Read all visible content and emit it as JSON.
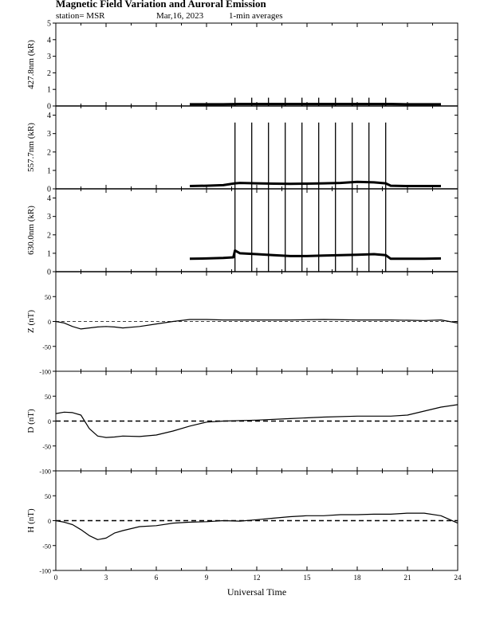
{
  "header": {
    "title": "Magnetic Field Variation and Auroral Emission",
    "station": "station= MSR",
    "date": "Mar,16, 2023",
    "averaging": "1-min averages"
  },
  "colors": {
    "line": "#000000",
    "background": "#ffffff"
  },
  "chart_data": [
    {
      "type": "line",
      "id": "em4278",
      "ylabel": "427.8nm (kR)",
      "ylim": [
        0,
        5
      ],
      "yticks": [
        0,
        1,
        2,
        3,
        4,
        5
      ],
      "xlim": [
        0,
        24
      ],
      "series": [
        {
          "x": [
            8.0,
            9,
            10,
            11,
            12,
            13,
            14,
            15,
            16,
            17,
            18,
            19,
            20,
            21,
            22,
            23.0
          ],
          "y": [
            0.1,
            0.1,
            0.1,
            0.12,
            0.12,
            0.12,
            0.12,
            0.12,
            0.12,
            0.12,
            0.12,
            0.12,
            0.12,
            0.1,
            0.1,
            0.1
          ]
        }
      ],
      "spikes": {
        "x": [
          10.7,
          11.7,
          12.7,
          13.7,
          14.7,
          15.7,
          16.7,
          17.7,
          18.7,
          19.7
        ],
        "y": 0.5
      }
    },
    {
      "type": "line",
      "id": "em5577",
      "ylabel": "557.7nm (kR)",
      "ylim": [
        0,
        4.5
      ],
      "yticks": [
        0,
        1,
        2,
        3,
        4
      ],
      "xlim": [
        0,
        24
      ],
      "series": [
        {
          "x": [
            8.0,
            9,
            10,
            10.7,
            11,
            12,
            13,
            14,
            15,
            16,
            17,
            18,
            19,
            19.7,
            20,
            21,
            22,
            23.0
          ],
          "y": [
            0.15,
            0.17,
            0.2,
            0.3,
            0.32,
            0.3,
            0.28,
            0.27,
            0.28,
            0.3,
            0.32,
            0.38,
            0.35,
            0.3,
            0.17,
            0.15,
            0.15,
            0.15
          ]
        }
      ],
      "spikes": {
        "x": [
          10.7,
          11.7,
          12.7,
          13.7,
          14.7,
          15.7,
          16.7,
          17.7,
          18.7,
          19.7
        ],
        "y": 3.6
      }
    },
    {
      "type": "line",
      "id": "em6300",
      "ylabel": "630.0nm (kR)",
      "ylim": [
        0,
        4.5
      ],
      "yticks": [
        0,
        1,
        2,
        3,
        4
      ],
      "xlim": [
        0,
        24
      ],
      "series": [
        {
          "x": [
            8.0,
            9,
            10,
            10.6,
            10.7,
            11,
            12,
            13,
            14,
            15,
            16,
            17,
            18,
            19,
            19.7,
            20,
            21,
            22,
            23.0
          ],
          "y": [
            0.7,
            0.72,
            0.75,
            0.78,
            1.15,
            1.0,
            0.95,
            0.9,
            0.85,
            0.85,
            0.88,
            0.9,
            0.92,
            0.95,
            0.9,
            0.7,
            0.7,
            0.7,
            0.72
          ]
        }
      ],
      "spikes": {
        "x": [
          10.7,
          11.7,
          12.7,
          13.7,
          14.7,
          15.7,
          16.7,
          17.7,
          18.7,
          19.7
        ],
        "y": 4.5
      }
    },
    {
      "type": "line",
      "id": "magZ",
      "ylabel": "Z (nT)",
      "ylim": [
        -100,
        100
      ],
      "yticks": [
        -100,
        -50,
        0,
        50
      ],
      "xlim": [
        0,
        24
      ],
      "baseline": "dashed-thin",
      "series": [
        {
          "x": [
            0,
            0.5,
            1,
            1.5,
            2,
            2.5,
            3,
            3.5,
            4,
            5,
            6,
            7,
            8,
            9,
            10,
            12,
            14,
            16,
            18,
            20,
            22,
            23,
            24
          ],
          "y": [
            0,
            -3,
            -10,
            -15,
            -13,
            -11,
            -10,
            -11,
            -13,
            -10,
            -5,
            0,
            4,
            4,
            3,
            3,
            3,
            4,
            3,
            3,
            2,
            3,
            -3
          ]
        }
      ]
    },
    {
      "type": "line",
      "id": "magD",
      "ylabel": "D (nT)",
      "ylim": [
        -100,
        100
      ],
      "yticks": [
        -100,
        -50,
        0,
        50
      ],
      "xlim": [
        0,
        24
      ],
      "baseline": "dashed-thick",
      "series": [
        {
          "x": [
            0,
            0.5,
            1,
            1.5,
            2,
            2.5,
            3,
            3.5,
            4,
            5,
            6,
            7,
            8,
            9,
            10,
            12,
            14,
            16,
            18,
            20,
            21,
            22,
            23,
            24
          ],
          "y": [
            15,
            18,
            17,
            12,
            -15,
            -30,
            -33,
            -32,
            -30,
            -31,
            -28,
            -20,
            -10,
            -2,
            0,
            2,
            5,
            8,
            10,
            10,
            12,
            20,
            28,
            33
          ]
        }
      ]
    },
    {
      "type": "line",
      "id": "magH",
      "xlabel": "Universal Time",
      "ylabel": "H (nT)",
      "ylim": [
        -100,
        100
      ],
      "yticks": [
        -100,
        -50,
        0,
        50
      ],
      "xlim": [
        0,
        24
      ],
      "xticks": [
        0,
        3,
        6,
        9,
        12,
        15,
        18,
        21,
        24
      ],
      "baseline": "dashed-thick",
      "series": [
        {
          "x": [
            0,
            0.5,
            1,
            1.5,
            2,
            2.5,
            3,
            3.5,
            4,
            5,
            6,
            7,
            8,
            9,
            10,
            11,
            12,
            13,
            14,
            15,
            16,
            17,
            18,
            19,
            20,
            21,
            22,
            23,
            24
          ],
          "y": [
            0,
            -3,
            -8,
            -18,
            -30,
            -38,
            -35,
            -25,
            -20,
            -12,
            -10,
            -5,
            -3,
            -2,
            0,
            -1,
            2,
            5,
            8,
            10,
            10,
            12,
            12,
            13,
            13,
            15,
            15,
            10,
            -5
          ]
        }
      ]
    }
  ]
}
